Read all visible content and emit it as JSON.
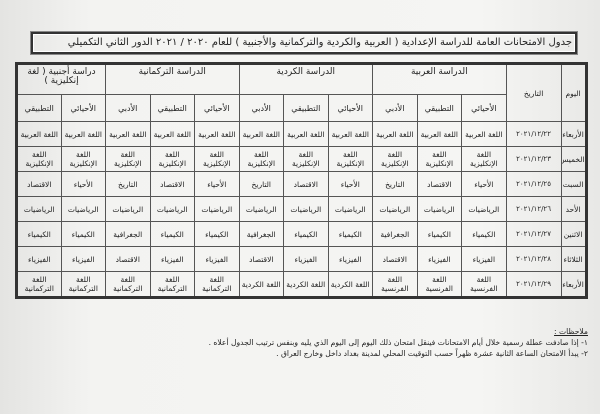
{
  "title": "جدول الامتحانات العامة للدراسة الإعدادية ( العربية والكردية والتركمانية والأجنبية ) للعام ٢٠٢٠ / ٢٠٢١ الدور الثاني التكميلي",
  "table": {
    "day_header": "اليوم",
    "date_header": "التاريخ",
    "groups": [
      {
        "label": "الدراسة العربية",
        "subs": [
          "الأحيائي",
          "التطبيقي",
          "الأدبي"
        ]
      },
      {
        "label": "الدراسة الكردية",
        "subs": [
          "الأحيائي",
          "التطبيقي",
          "الأدبي"
        ]
      },
      {
        "label": "الدراسة التركمانية",
        "subs": [
          "الأحيائي",
          "التطبيقي",
          "الأدبي"
        ]
      },
      {
        "label": "دراسة أجنبية ( لغة إنكليزية )",
        "subs": [
          "الأحيائي",
          "التطبيقي"
        ]
      }
    ],
    "rows": [
      {
        "day": "الأربعاء",
        "date": "٢٠٢١/١٢/٢٢",
        "cells": [
          "اللغة العربية",
          "اللغة العربية",
          "اللغة العربية",
          "اللغة العربية",
          "اللغة العربية",
          "اللغة العربية",
          "اللغة العربية",
          "اللغة العربية",
          "اللغة العربية",
          "اللغة العربية",
          "اللغة العربية"
        ]
      },
      {
        "day": "الخميس",
        "date": "٢٠٢١/١٢/٢٣",
        "cells": [
          "اللغة الإنكليزية",
          "اللغة الإنكليزية",
          "اللغة الإنكليزية",
          "اللغة الإنكليزية",
          "اللغة الإنكليزية",
          "اللغة الإنكليزية",
          "اللغة الإنكليزية",
          "اللغة الإنكليزية",
          "اللغة الإنكليزية",
          "اللغة الإنكليزية",
          "اللغة الإنكليزية"
        ]
      },
      {
        "day": "السبت",
        "date": "٢٠٢١/١٢/٢٥",
        "cells": [
          "الأحياء",
          "الاقتصاد",
          "التاريخ",
          "الأحياء",
          "الاقتصاد",
          "التاريخ",
          "الأحياء",
          "الاقتصاد",
          "التاريخ",
          "الأحياء",
          "الاقتصاد"
        ]
      },
      {
        "day": "الأحد",
        "date": "٢٠٢١/١٢/٢٦",
        "cells": [
          "الرياضيات",
          "الرياضيات",
          "الرياضيات",
          "الرياضيات",
          "الرياضيات",
          "الرياضيات",
          "الرياضيات",
          "الرياضيات",
          "الرياضيات",
          "الرياضيات",
          "الرياضيات"
        ]
      },
      {
        "day": "الاثنين",
        "date": "٢٠٢١/١٢/٢٧",
        "cells": [
          "الكيمياء",
          "الكيمياء",
          "الجغرافية",
          "الكيمياء",
          "الكيمياء",
          "الجغرافية",
          "الكيمياء",
          "الكيمياء",
          "الجغرافية",
          "الكيمياء",
          "الكيمياء"
        ]
      },
      {
        "day": "الثلاثاء",
        "date": "٢٠٢١/١٢/٢٨",
        "cells": [
          "الفيزياء",
          "الفيزياء",
          "الاقتصاد",
          "الفيزياء",
          "الفيزياء",
          "الاقتصاد",
          "الفيزياء",
          "الفيزياء",
          "الاقتصاد",
          "الفيزياء",
          "الفيزياء"
        ]
      },
      {
        "day": "الأربعاء",
        "date": "٢٠٢١/١٢/٢٩",
        "cells": [
          "اللغة الفرنسية",
          "اللغة الفرنسية",
          "اللغة الفرنسية",
          "اللغة الكردية",
          "اللغة الكردية",
          "اللغة الكردية",
          "اللغة التركمانية",
          "اللغة التركمانية",
          "اللغة التركمانية",
          "اللغة التركمانية",
          "اللغة التركمانية"
        ]
      }
    ]
  },
  "notes": {
    "heading": "ملاحظات :",
    "items": [
      "١- إذا صادفت عطلة رسمية خلال أيام الامتحانات فينقل امتحان ذلك اليوم إلى اليوم الذي يليه وبنفس ترتيب الجدول أعلاه .",
      "٢- يبدأ الامتحان الساعة الثانية عشرة ظهراً حسب التوقيت المحلي لمدينة بغداد داخل وخارج العراق ."
    ]
  }
}
